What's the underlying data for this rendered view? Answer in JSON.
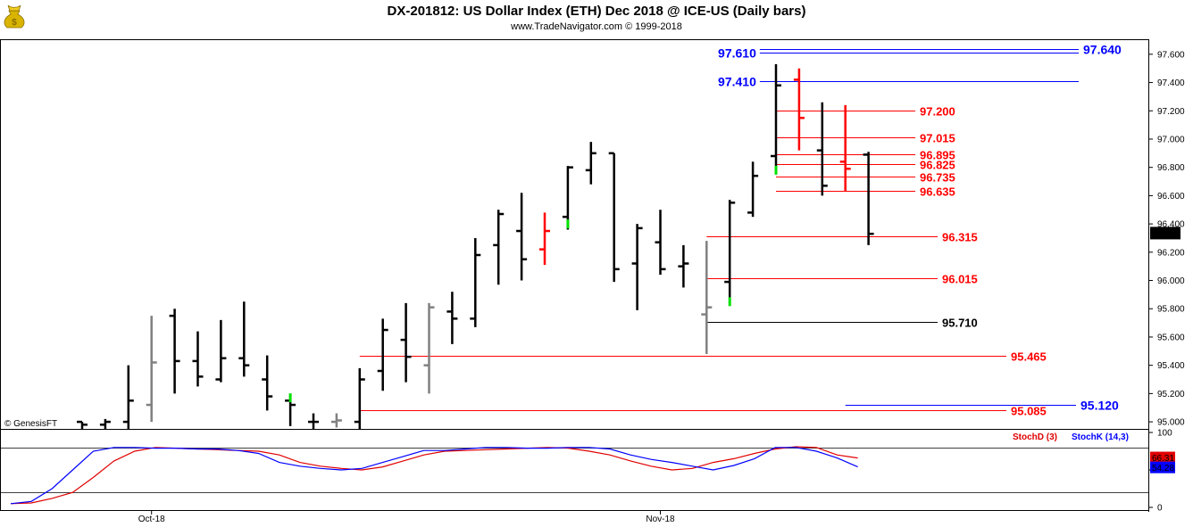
{
  "header": {
    "title": "DX-201812:  US Dollar Index (ETH) Dec 2018 @ ICE-US  (Daily bars)",
    "subtitle": "www.TradeNavigator.com © 1999-2018",
    "watermark": "© GenesisFT",
    "logo_icon": "money-bag-icon"
  },
  "colors": {
    "up_bar": "#000000",
    "down_bar": "#ff0000",
    "neutral_bar": "#808080",
    "green_tick": "#00e000",
    "blue_level": "#0000ff",
    "red_level": "#e00000",
    "stoch_d": "#e00000",
    "stoch_k": "#0000ff"
  },
  "chart_data": [
    {
      "type": "ohlc",
      "ylim": [
        94.95,
        97.7
      ],
      "yticks": [
        "97.600",
        "97.400",
        "97.200",
        "97.000",
        "96.800",
        "96.600",
        "96.400",
        "96.200",
        "96.000",
        "95.800",
        "95.600",
        "95.400",
        "95.200",
        "95.000"
      ],
      "xlabels": [
        {
          "label": "Oct-18",
          "index": 3
        },
        {
          "label": "Nov-18",
          "index": 25
        }
      ],
      "last_price_label": "96.335",
      "bars": [
        {
          "o": 95.0,
          "h": 95.0,
          "l": 94.95,
          "c": 94.98,
          "color": "black"
        },
        {
          "o": 94.98,
          "h": 95.02,
          "l": 94.95,
          "c": 95.0,
          "color": "black"
        },
        {
          "o": 95.0,
          "h": 95.4,
          "l": 94.95,
          "c": 95.15,
          "color": "black"
        },
        {
          "o": 95.12,
          "h": 95.75,
          "l": 95.0,
          "c": 95.42,
          "color": "gray"
        },
        {
          "o": 95.75,
          "h": 95.8,
          "l": 95.2,
          "c": 95.43,
          "color": "black"
        },
        {
          "o": 95.43,
          "h": 95.64,
          "l": 95.25,
          "c": 95.32,
          "color": "black"
        },
        {
          "o": 95.3,
          "h": 95.72,
          "l": 95.28,
          "c": 95.45,
          "color": "black"
        },
        {
          "o": 95.45,
          "h": 95.85,
          "l": 95.32,
          "c": 95.4,
          "color": "black"
        },
        {
          "o": 95.3,
          "h": 95.47,
          "l": 95.08,
          "c": 95.18,
          "color": "black"
        },
        {
          "o": 95.15,
          "h": 95.19,
          "l": 94.97,
          "c": 95.12,
          "color": "black",
          "green": 95.17
        },
        {
          "o": 95.0,
          "h": 95.06,
          "l": 94.95,
          "c": 95.0,
          "color": "black"
        },
        {
          "o": 95.0,
          "h": 95.06,
          "l": 94.96,
          "c": 95.01,
          "color": "gray"
        },
        {
          "o": 95.0,
          "h": 95.38,
          "l": 94.95,
          "c": 95.3,
          "color": "black"
        },
        {
          "o": 95.36,
          "h": 95.73,
          "l": 95.22,
          "c": 95.65,
          "color": "black"
        },
        {
          "o": 95.58,
          "h": 95.84,
          "l": 95.28,
          "c": 95.46,
          "color": "black"
        },
        {
          "o": 95.4,
          "h": 95.84,
          "l": 95.2,
          "c": 95.81,
          "color": "gray"
        },
        {
          "o": 95.78,
          "h": 95.92,
          "l": 95.55,
          "c": 95.73,
          "color": "black"
        },
        {
          "o": 95.73,
          "h": 96.3,
          "l": 95.67,
          "c": 96.18,
          "color": "black"
        },
        {
          "o": 96.25,
          "h": 96.5,
          "l": 95.97,
          "c": 96.47,
          "color": "black"
        },
        {
          "o": 96.35,
          "h": 96.62,
          "l": 96.0,
          "c": 96.15,
          "color": "black"
        },
        {
          "o": 96.22,
          "h": 96.48,
          "l": 96.11,
          "c": 96.35,
          "color": "red"
        },
        {
          "o": 96.45,
          "h": 96.81,
          "l": 96.36,
          "c": 96.8,
          "color": "black",
          "green": 96.4
        },
        {
          "o": 96.78,
          "h": 96.98,
          "l": 96.68,
          "c": 96.9,
          "color": "black"
        },
        {
          "o": 96.9,
          "h": 96.9,
          "l": 95.99,
          "c": 96.08,
          "color": "black"
        },
        {
          "o": 96.12,
          "h": 96.4,
          "l": 95.79,
          "c": 96.37,
          "color": "black"
        },
        {
          "o": 96.27,
          "h": 96.5,
          "l": 96.04,
          "c": 96.08,
          "color": "black"
        },
        {
          "o": 96.1,
          "h": 96.25,
          "l": 95.95,
          "c": 96.12,
          "color": "black"
        },
        {
          "o": 95.76,
          "h": 96.28,
          "l": 95.48,
          "c": 95.81,
          "color": "gray"
        },
        {
          "o": 95.99,
          "h": 96.57,
          "l": 95.87,
          "c": 96.55,
          "color": "black",
          "green": 95.85
        },
        {
          "o": 96.48,
          "h": 96.84,
          "l": 96.45,
          "c": 96.74,
          "color": "black"
        },
        {
          "o": 96.88,
          "h": 97.53,
          "l": 96.78,
          "c": 97.38,
          "color": "black",
          "green": 96.78
        },
        {
          "o": 97.42,
          "h": 97.5,
          "l": 96.92,
          "c": 97.15,
          "color": "red"
        },
        {
          "o": 96.92,
          "h": 97.26,
          "l": 96.6,
          "c": 96.67,
          "color": "black"
        },
        {
          "o": 96.84,
          "h": 97.24,
          "l": 96.63,
          "c": 96.79,
          "color": "red"
        },
        {
          "o": 96.89,
          "h": 96.91,
          "l": 96.25,
          "c": 96.33,
          "color": "black"
        }
      ],
      "levels": [
        {
          "label": "97.640",
          "value": 97.64,
          "color": "blue",
          "from": 29.3,
          "size": "big",
          "lineTo": 1208
        },
        {
          "label": "97.610",
          "value": 97.61,
          "color": "blue",
          "from": 29.3,
          "size": "big",
          "left": true,
          "lineTo": 1208
        },
        {
          "label": "97.410",
          "value": 97.41,
          "color": "blue",
          "from": 29.3,
          "size": "big",
          "left": true,
          "lineTo": 1208
        },
        {
          "label": "97.200",
          "value": 97.2,
          "color": "red",
          "from": 30.0,
          "lineTo": 1025
        },
        {
          "label": "97.015",
          "value": 97.015,
          "color": "red",
          "from": 30.0,
          "lineTo": 1025
        },
        {
          "label": "96.895",
          "value": 96.895,
          "color": "red",
          "from": 30.0,
          "lineTo": 1025
        },
        {
          "label": "96.825",
          "value": 96.825,
          "color": "red",
          "from": 30.0,
          "lineTo": 1025
        },
        {
          "label": "96.735",
          "value": 96.735,
          "color": "red",
          "from": 30.0,
          "lineTo": 1025
        },
        {
          "label": "96.635",
          "value": 96.635,
          "color": "red",
          "from": 30.0,
          "lineTo": 1025
        },
        {
          "label": "96.315",
          "value": 96.315,
          "color": "red",
          "from": 27.0,
          "lineTo": 1050
        },
        {
          "label": "96.015",
          "value": 96.015,
          "color": "red",
          "from": 27.0,
          "lineTo": 1050
        },
        {
          "label": "95.710",
          "value": 95.71,
          "color": "black",
          "from": 27.0,
          "lineTo": 1050
        },
        {
          "label": "95.465",
          "value": 95.465,
          "color": "red",
          "from": 12.0,
          "lineTo": 1127
        },
        {
          "label": "95.120",
          "value": 95.12,
          "color": "blue",
          "from": 33.0,
          "size": "big",
          "lineTo": 1205
        },
        {
          "label": "95.085",
          "value": 95.085,
          "color": "red",
          "from": 12.0,
          "lineTo": 1127
        }
      ]
    },
    {
      "type": "line",
      "ylim": [
        0,
        100
      ],
      "yticks": [
        "100",
        "50",
        "0"
      ],
      "ref_levels": [
        80,
        20
      ],
      "legend": [
        "StochD (3)",
        "StochK (14,3)"
      ],
      "series": [
        {
          "name": "StochD (3)",
          "color": "red",
          "last_label": "66.31",
          "values": [
            5,
            6,
            12,
            20,
            40,
            62,
            75,
            80,
            79,
            78,
            77,
            76,
            75,
            70,
            60,
            55,
            52,
            50,
            54,
            62,
            70,
            75,
            76,
            77,
            78,
            79,
            80,
            79,
            75,
            70,
            62,
            55,
            50,
            52,
            60,
            65,
            72,
            78,
            81,
            80,
            70,
            66
          ]
        },
        {
          "name": "StochK (14,3)",
          "color": "blue",
          "last_label": "54.28",
          "values": [
            5,
            8,
            25,
            50,
            75,
            80,
            80,
            79,
            79,
            78,
            78,
            76,
            72,
            60,
            55,
            52,
            50,
            52,
            60,
            68,
            76,
            76,
            78,
            80,
            80,
            79,
            79,
            80,
            80,
            78,
            70,
            64,
            60,
            55,
            50,
            56,
            65,
            80,
            80,
            75,
            66,
            54
          ]
        }
      ]
    }
  ]
}
